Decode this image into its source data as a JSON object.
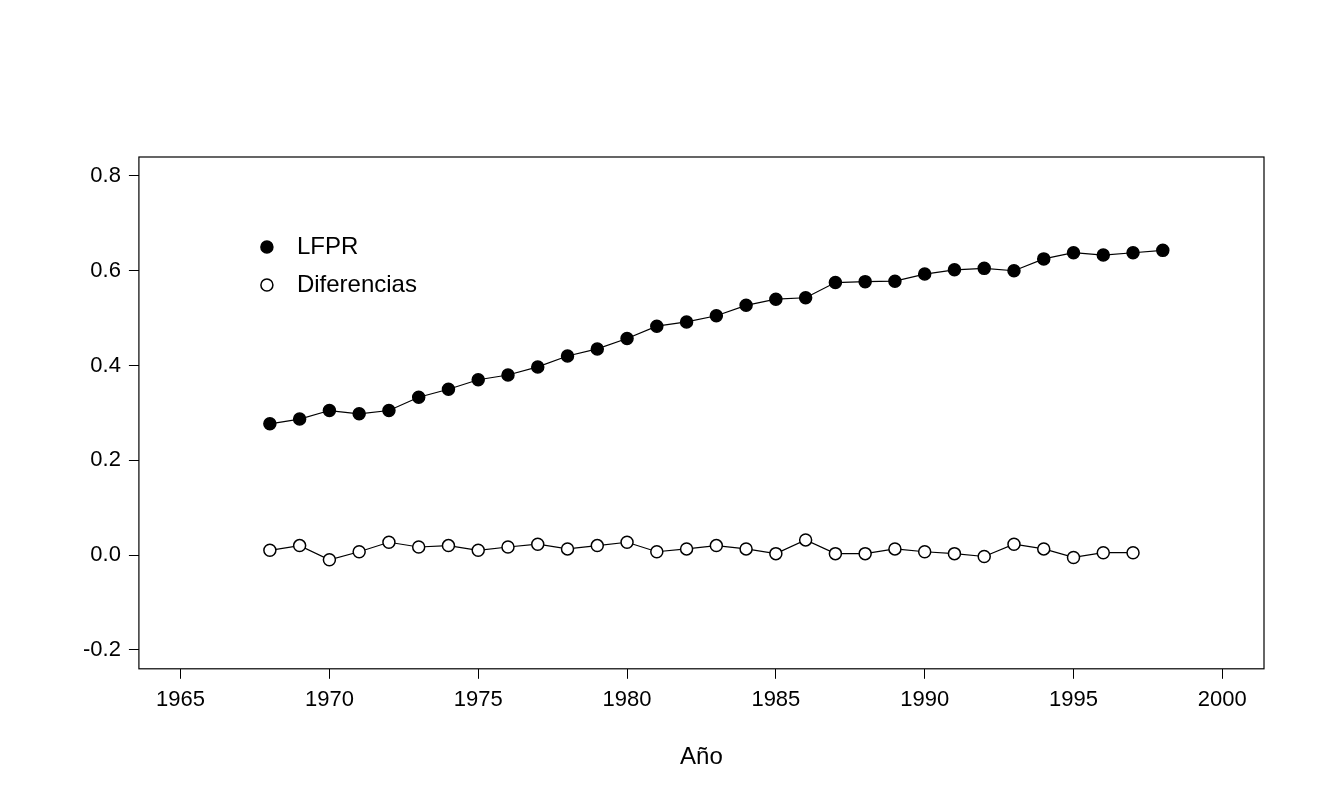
{
  "chart_data": {
    "type": "line",
    "x_label": "Año",
    "x": [
      1968,
      1969,
      1970,
      1971,
      1972,
      1973,
      1974,
      1975,
      1976,
      1977,
      1978,
      1979,
      1980,
      1981,
      1982,
      1983,
      1984,
      1985,
      1986,
      1987,
      1988,
      1989,
      1990,
      1991,
      1992,
      1993,
      1994,
      1995,
      1996,
      1997,
      1998
    ],
    "series": [
      {
        "name": "LFPR",
        "color": "#000000",
        "marker": "filled_circle",
        "line_style": "solid",
        "values": [
          0.277,
          0.287,
          0.305,
          0.298,
          0.305,
          0.333,
          0.35,
          0.37,
          0.38,
          0.397,
          0.42,
          0.435,
          0.457,
          0.483,
          0.492,
          0.505,
          0.527,
          0.54,
          0.543,
          0.575,
          0.577,
          0.578,
          0.593,
          0.602,
          0.605,
          0.6,
          0.625,
          0.638,
          0.633,
          0.638,
          0.643
        ]
      },
      {
        "name": "Diferencias",
        "color": "#000000",
        "marker": "open_circle",
        "line_style": "solid",
        "values": [
          0.01,
          0.02,
          -0.01,
          0.007,
          0.027,
          0.017,
          0.02,
          0.01,
          0.017,
          0.023,
          0.013,
          0.02,
          0.027,
          0.007,
          0.013,
          0.02,
          0.013,
          0.003,
          0.032,
          0.003,
          0.003,
          0.013,
          0.007,
          0.003,
          -0.003,
          0.023,
          0.013,
          -0.005,
          0.005,
          0.005,
          null
        ]
      }
    ],
    "xlim": [
      1963.6,
      2001.4
    ],
    "xticks": [
      1965,
      1970,
      1975,
      1980,
      1985,
      1990,
      1995,
      2000
    ],
    "ylim": [
      -0.24,
      0.84
    ],
    "yticks": [
      -0.2,
      {
        "value": 0,
        "label": "0.0"
      },
      0.2,
      0.4,
      0.6,
      0.8
    ],
    "grid": false,
    "legend": "top-left"
  }
}
